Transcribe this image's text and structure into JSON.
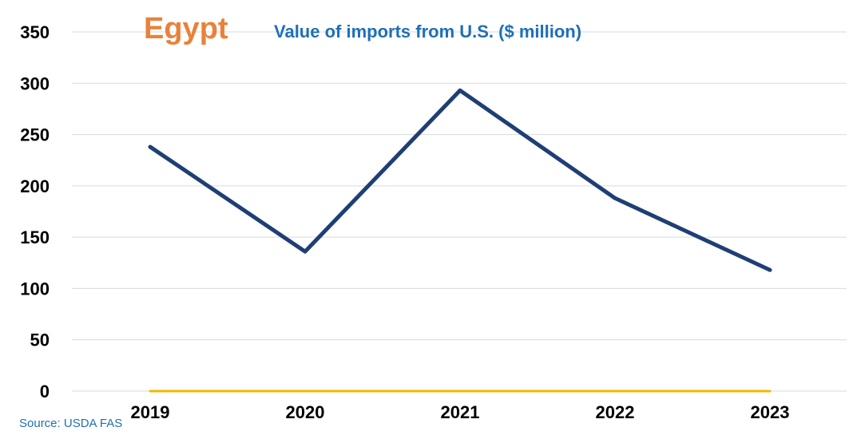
{
  "chart_data": {
    "type": "line",
    "title": "Egypt",
    "subtitle": "Value of imports from U.S. ($ million)",
    "source": "Source: USDA FAS",
    "categories": [
      "2019",
      "2020",
      "2021",
      "2022",
      "2023"
    ],
    "series": [
      {
        "values": [
          238,
          136,
          293,
          188,
          118
        ],
        "color": "#1f3f74"
      },
      {
        "values": [
          0,
          0,
          0,
          0,
          0
        ],
        "color": "#f2b800"
      }
    ],
    "ylim": [
      0,
      350
    ],
    "yticks": [
      0,
      50,
      100,
      150,
      200,
      250,
      300,
      350
    ],
    "grid": true,
    "colors": {
      "title": "#e8823a",
      "subtitle": "#1f6fb6",
      "source": "#1f6fb6",
      "grid": "#d9d9d9"
    }
  }
}
